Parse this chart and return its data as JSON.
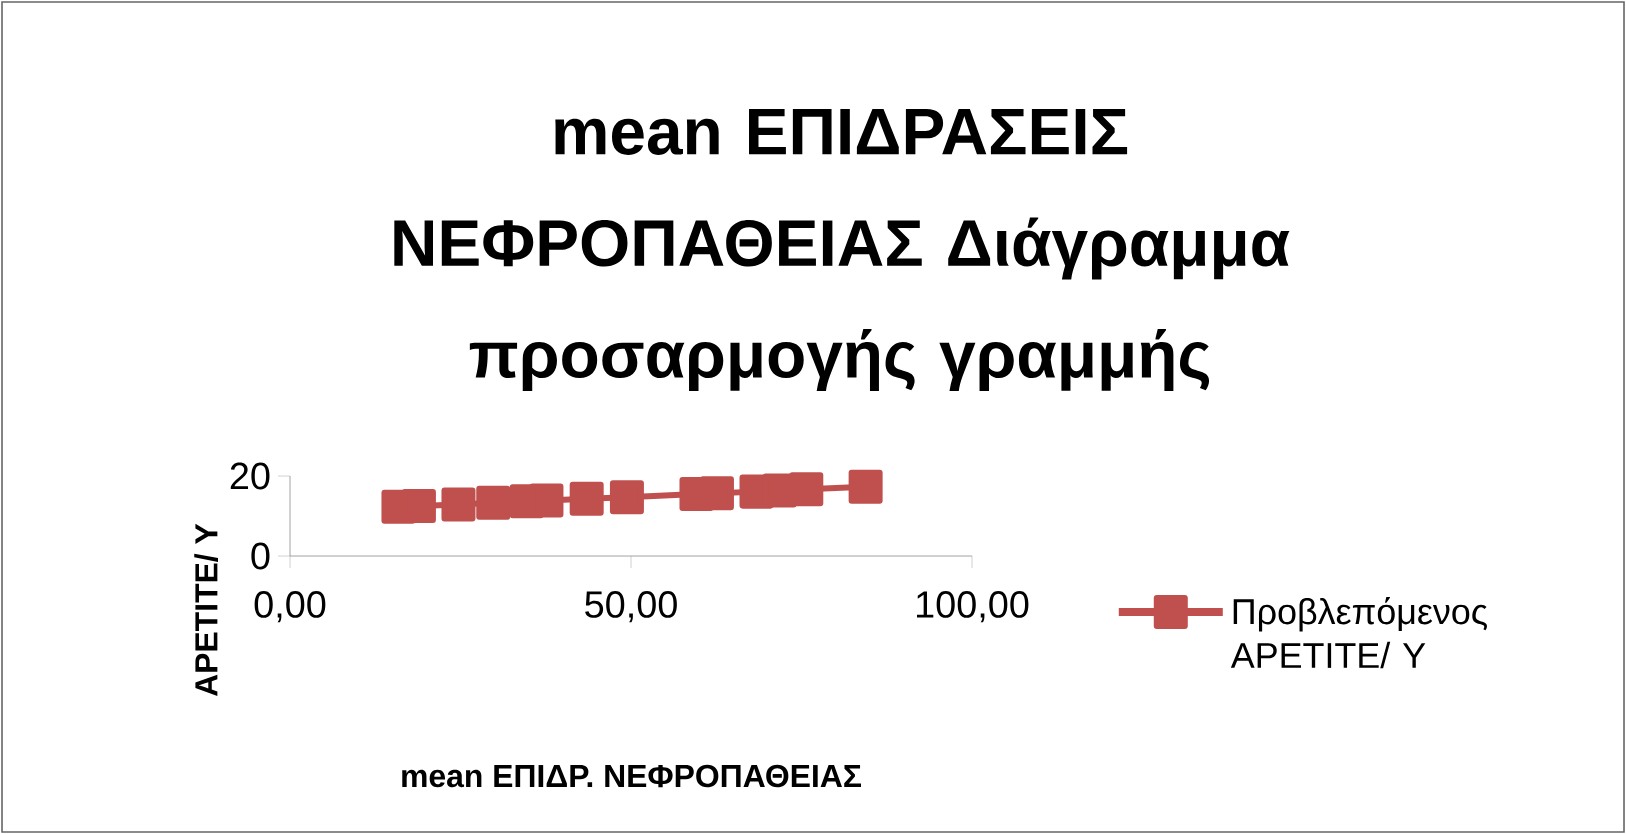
{
  "chart_data": {
    "type": "line",
    "title": "mean ΕΠΙΔΡΑΣΕΙΣ ΝΕΦΡΟΠΑΘΕΙΑΣ  Διάγραμμα προσαρμογής γραμμής",
    "xlabel": "mean ΕΠΙΔΡ. ΝΕΦΡΟΠΑΘΕΙΑΣ",
    "ylabel": "APETITE/ Y",
    "xlim": [
      0,
      100
    ],
    "ylim": [
      0,
      20
    ],
    "xticks": [
      {
        "value": 0,
        "label": "0,00"
      },
      {
        "value": 50,
        "label": "50,00"
      },
      {
        "value": 100,
        "label": "100,00"
      }
    ],
    "yticks": [
      0,
      20
    ],
    "x": [
      15.9,
      18.9,
      24.7,
      29.8,
      34.7,
      37.6,
      43.5,
      49.4,
      59.6,
      62.6,
      68.4,
      71.8,
      75.7,
      84.4
    ],
    "series": [
      {
        "name": "Προβλεπόμενος APETITE/ Y",
        "color": "#c0504d",
        "values": [
          12.3,
          12.5,
          12.9,
          13.3,
          13.7,
          13.9,
          14.3,
          14.7,
          15.5,
          15.7,
          16.1,
          16.4,
          16.7,
          17.3
        ]
      }
    ],
    "marker": "square",
    "line_style": "solid",
    "grid": false,
    "legend": "right"
  }
}
